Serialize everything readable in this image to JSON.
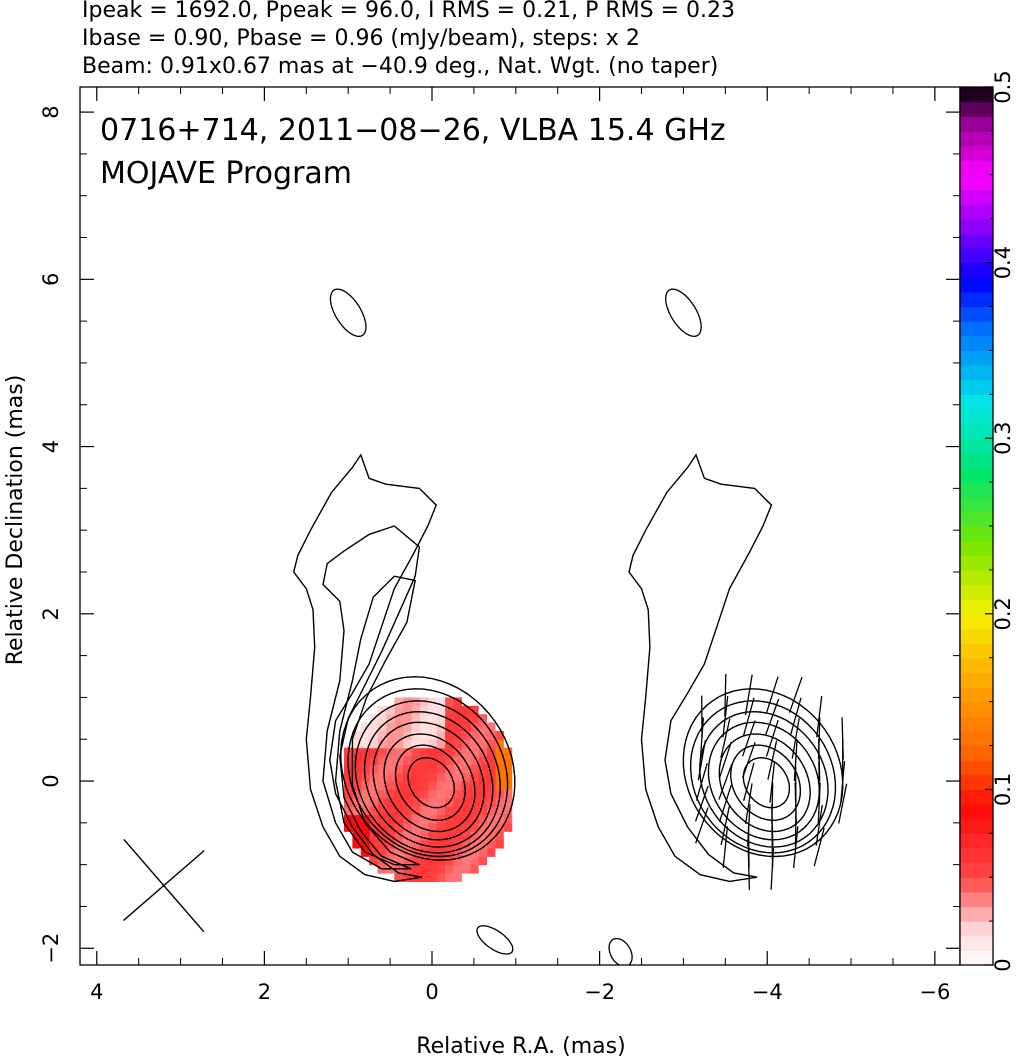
{
  "header": {
    "line1": "Ipeak = 1692.0, Ppeak = 96.0, I RMS = 0.21, P RMS = 0.23",
    "line2": "Ibase = 0.90, Pbase = 0.96 (mJy/beam), steps: x 2",
    "line3": "Beam: 0.91x0.67 mas at −40.9 deg., Nat. Wgt. (no taper)"
  },
  "chart_data": {
    "type": "heatmap",
    "title_line1": "0716+714, 2011−08−26, VLBA 15.4 GHz",
    "title_line2": "MOJAVE Program",
    "xlabel": "Relative R.A. (mas)",
    "ylabel": "Relative Declination (mas)",
    "panels": [
      "total intensity contours with fractional polarization color",
      "total intensity contours with EVPA ticks"
    ],
    "x_ticks": [
      {
        "value": 4,
        "label": "4"
      },
      {
        "value": 2,
        "label": "2"
      },
      {
        "value": 0,
        "label": "0"
      },
      {
        "value": -2,
        "label": "−2"
      },
      {
        "value": -4,
        "label": "−4"
      },
      {
        "value": -6,
        "label": "−6"
      }
    ],
    "y_ticks": [
      {
        "value": -2,
        "label": "−2"
      },
      {
        "value": 0,
        "label": "0"
      },
      {
        "value": 2,
        "label": "2"
      },
      {
        "value": 4,
        "label": "4"
      },
      {
        "value": 6,
        "label": "6"
      },
      {
        "value": 8,
        "label": "8"
      }
    ],
    "xlim": [
      4.2,
      -6.3
    ],
    "ylim": [
      -2.2,
      8.3
    ],
    "colorbar": {
      "range": [
        0,
        0.5
      ],
      "ticks": [
        {
          "value": 0,
          "label": "0"
        },
        {
          "value": 0.1,
          "label": "0.1"
        },
        {
          "value": 0.2,
          "label": "0.2"
        },
        {
          "value": 0.3,
          "label": "0.3"
        },
        {
          "value": 0.4,
          "label": "0.4"
        },
        {
          "value": 0.5,
          "label": "0.5"
        }
      ]
    },
    "beam": {
      "major_mas": 0.91,
      "minor_mas": 0.67,
      "pa_deg": -40.9,
      "center": [
        3.2,
        -1.25
      ]
    },
    "contour_levels_mJy_per_beam": [
      0.9,
      1.8,
      3.6,
      7.2,
      14.4,
      28.8,
      57.6,
      115.2,
      230.4,
      460.8,
      921.6
    ],
    "core": {
      "ra": 0,
      "dec": 0,
      "peak_mJy_per_beam": 1692.0
    },
    "fractional_polarization_region": {
      "center": [
        0.05,
        -0.1
      ],
      "radius_ra": 1.05,
      "radius_dec": 1.15,
      "typical_value": 0.05
    },
    "evpa_panel_offset_ra": -4.0
  }
}
